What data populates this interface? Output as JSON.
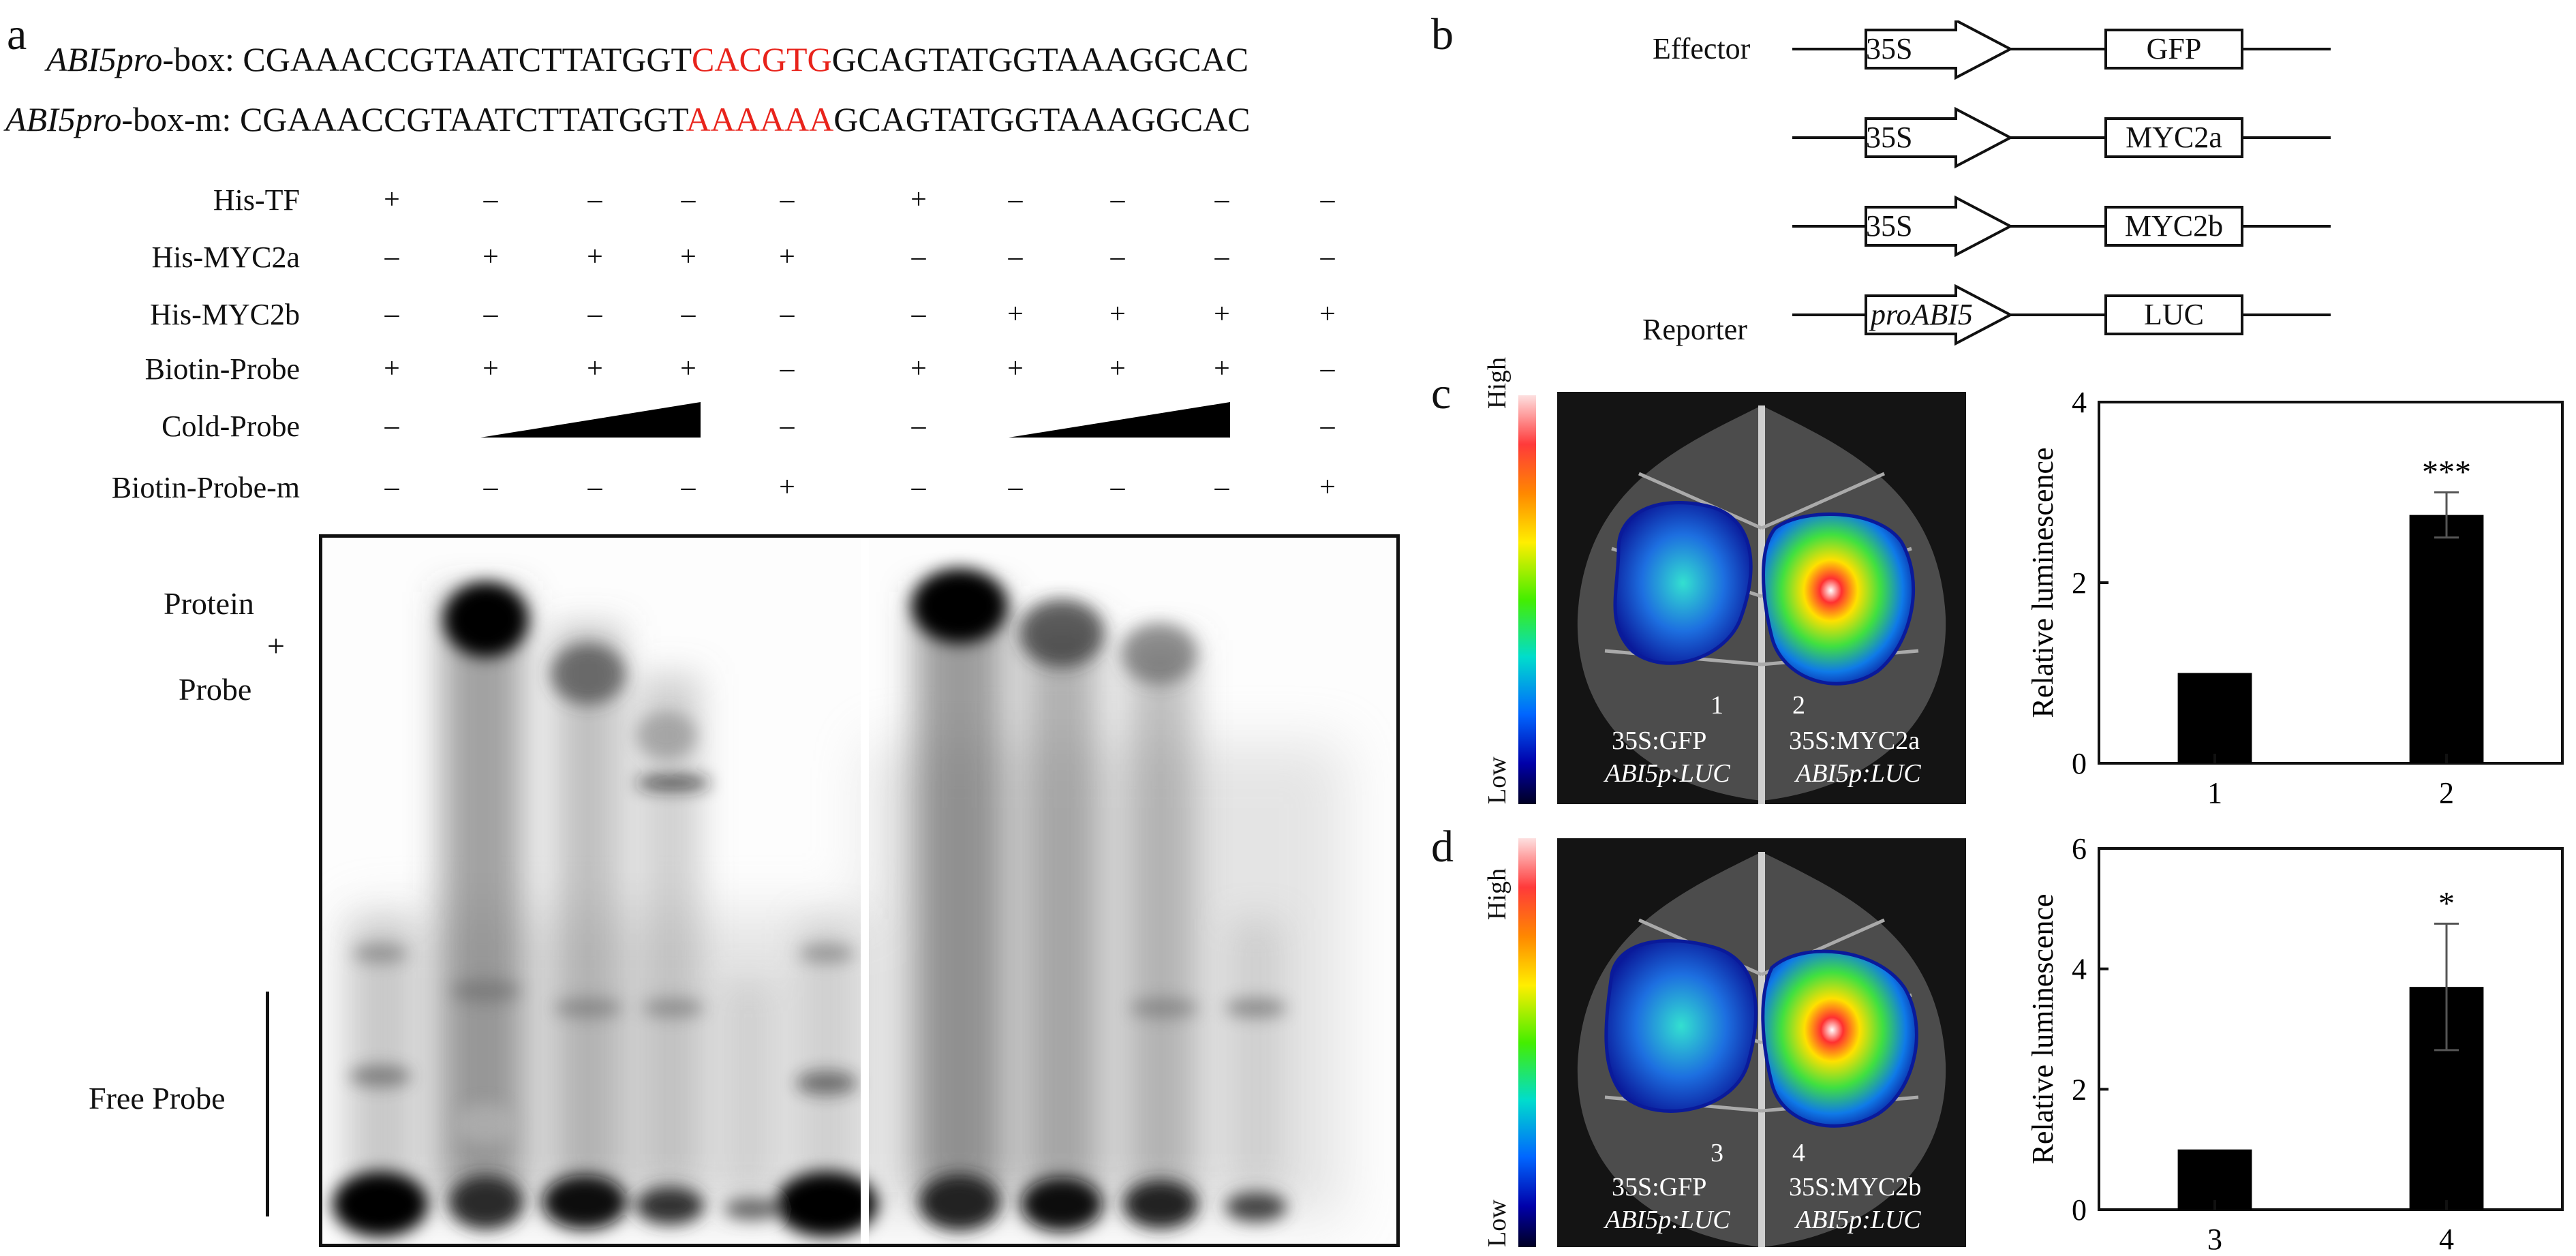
{
  "panel_a": {
    "letter": "a",
    "seq1_label_italic": "ABI5pro",
    "seq1_label_rest": "-box:",
    "seq1_before": "CGAAACCGTAATCTTATGGT",
    "seq1_motif": "CACGTG",
    "seq1_after": "GCAGTATGGTAAAGGCAC",
    "seq2_label_italic": "ABI5pro",
    "seq2_label_rest": "-box-m:",
    "seq2_before": "CGAAACCGTAATCTTATGGT",
    "seq2_motif": "AAAAAA",
    "seq2_after": "GCAGTATGGTAAAGGCAC",
    "rows": [
      {
        "label": "His-TF",
        "marks": [
          "+",
          "–",
          "–",
          "–",
          "–",
          "+",
          "–",
          "–",
          "–",
          "–"
        ]
      },
      {
        "label": "His-MYC2a",
        "marks": [
          "–",
          "+",
          "+",
          "+",
          "+",
          "–",
          "–",
          "–",
          "–",
          "–"
        ]
      },
      {
        "label": "His-MYC2b",
        "marks": [
          "–",
          "–",
          "–",
          "–",
          "–",
          "–",
          "+",
          "+",
          "+",
          "+"
        ]
      },
      {
        "label": "Biotin-Probe",
        "marks": [
          "+",
          "+",
          "+",
          "+",
          "–",
          "+",
          "+",
          "+",
          "+",
          "–"
        ]
      },
      {
        "label": "Cold-Probe",
        "marks": [
          "–",
          "",
          "",
          "",
          "–",
          "–",
          "",
          "",
          "",
          "–"
        ]
      },
      {
        "label": "Biotin-Probe-m",
        "marks": [
          "–",
          "–",
          "–",
          "–",
          "+",
          "–",
          "–",
          "–",
          "–",
          "+"
        ]
      }
    ],
    "gel_label_top": "Protein",
    "gel_label_plus": "+",
    "gel_label_probe": "Probe",
    "gel_label_free": "Free Probe"
  },
  "panel_b": {
    "letter": "b",
    "effector_label": "Effector",
    "reporter_label": "Reporter",
    "constructs": [
      {
        "promoter": "35S",
        "gene": "GFP"
      },
      {
        "promoter": "35S",
        "gene": "MYC2a"
      },
      {
        "promoter": "35S",
        "gene": "MYC2b"
      },
      {
        "promoter": "proABI5",
        "gene": "LUC"
      }
    ]
  },
  "panel_c": {
    "letter": "c",
    "scale_high": "High",
    "scale_low": "Low",
    "spot1": "1",
    "spot2": "2",
    "left_line1": "35S:GFP",
    "left_line2": "ABI5p:LUC",
    "right_line1": "35S:MYC2a",
    "right_line2": "ABI5p:LUC"
  },
  "panel_d": {
    "letter": "d",
    "scale_high": "High",
    "scale_low": "Low",
    "spot1": "3",
    "spot2": "4",
    "left_line1": "35S:GFP",
    "left_line2": "ABI5p:LUC",
    "right_line1": "35S:MYC2b",
    "right_line2": "ABI5p:LUC"
  },
  "chart_data": [
    {
      "type": "bar",
      "panel": "c",
      "categories": [
        "1",
        "2"
      ],
      "values": [
        1,
        2.75
      ],
      "errors": [
        0,
        0.25
      ],
      "significance": [
        "",
        "***"
      ],
      "ylabel": "Relative luminescence",
      "ylim": [
        0,
        4
      ],
      "yticks": [
        "0",
        "2",
        "4"
      ],
      "ytick_values": [
        0,
        2,
        4
      ],
      "bar_color": "#000000"
    },
    {
      "type": "bar",
      "panel": "d",
      "categories": [
        "3",
        "4"
      ],
      "values": [
        1,
        3.7
      ],
      "errors": [
        0,
        1.05
      ],
      "significance": [
        "",
        "*"
      ],
      "ylabel": "Relative luminescence",
      "ylim": [
        0,
        6
      ],
      "yticks": [
        "0",
        "2",
        "4",
        "6"
      ],
      "ytick_values": [
        0,
        2,
        4,
        6
      ],
      "bar_color": "#000000"
    }
  ]
}
